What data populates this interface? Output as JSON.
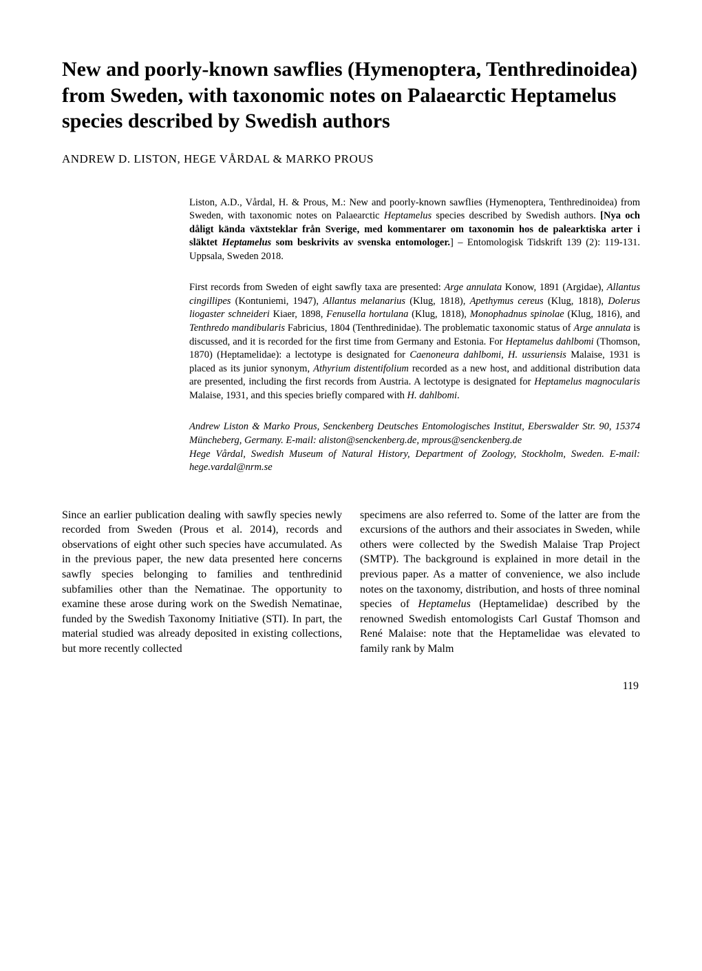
{
  "title": "New and poorly-known sawflies (Hymenoptera, Tenthredinoidea) from Sweden, with taxonomic notes on Palaearctic <span class=\"italic\">Heptamelus</span> species described by Swedish authors",
  "authors": "ANDREW D. LISTON, HEGE VÅRDAL & MARKO PROUS",
  "abstract": {
    "citation": "Liston, A.D., Vårdal, H. & Prous, M.: New and poorly-known sawflies (Hymenoptera, Tenthredinoidea) from Sweden, with taxonomic notes on Palaearctic <em>Heptamelus</em> species described by Swedish authors. <b>[Nya och dåligt kända växtsteklar från Sverige, med kommentarer om taxonomin hos de palearktiska arter i släktet <em>Heptamelus</em> som beskrivits av svenska entomologer.</b>] – Entomologisk Tidskrift 139 (2): 119-131. Uppsala, Sweden 2018.",
    "main": "First records from Sweden of eight sawfly taxa are presented: <em>Arge annulata</em> Konow, 1891 (Argidae), <em>Allantus cingillipes</em> (Kontuniemi, 1947), <em>Allantus melanarius</em> (Klug, 1818), <em>Apethymus cereus</em> (Klug, 1818), <em>Dolerus liogaster schneideri</em> Kiaer, 1898, <em>Fenusella hortulana</em> (Klug, 1818), <em>Monophadnus spinolae</em> (Klug, 1816), and <em>Tenthredo mandibularis</em> Fabricius, 1804 (Tenthredinidae). The problematic taxonomic status of <em>Arge annulata</em> is discussed, and it is recorded for the first time from Germany and Estonia. For <em>Heptamelus dahlbomi</em> (Thomson, 1870) (Heptamelidae): a lectotype is designated for <em>Caenoneura dahlbomi</em>, <em>H. ussuriensis</em> Malaise, 1931 is placed as its junior synonym, <em>Athyrium distentifolium</em> recorded as a new host, and additional distribution data are presented, including the first records from Austria. A lectotype is designated for <em>Heptamelus magnocularis</em> Malaise, 1931, and this species briefly compared with <em>H. dahlbomi</em>.",
    "affil1": "Andrew Liston & Marko Prous, Senckenberg Deutsches Entomologisches Institut, Eberswalder Str. 90, 15374 Müncheberg, Germany. E-mail: aliston@senckenberg.de, mprous@senckenberg.de",
    "affil2": "Hege Vårdal, Swedish Museum of Natural History, Department of Zoology, Stockholm, Sweden. E-mail: hege.vardal@nrm.se"
  },
  "body": {
    "col1": "Since an earlier publication dealing with sawfly species newly recorded from Sweden (Prous et al. 2014), records and observations of eight other such species have accumulated. As in the previous paper, the new data presented here concerns sawfly species belonging to families and tenthredinid subfamilies other than the Nematinae. The opportunity to examine these arose during work on the Swedish Nematinae, funded by the Swedish Taxonomy Initiative (STI). In part, the material studied was already deposited in existing collections, but more recently collected",
    "col2": "specimens are also referred to. Some of the latter are from the excursions of the authors and their associates in Sweden, while others were collected by the Swedish Malaise Trap Project (SMTP). The background is explained in more detail in the previous paper. As a matter of convenience, we also include notes on the taxonomy, distribution, and hosts of three nominal species of <em>Heptamelus</em> (Heptamelidae) described by the renowned Swedish entomologists Carl Gustaf Thomson and René Malaise: note that the Heptamelidae was elevated to family rank by Malm"
  },
  "pageNumber": "119"
}
